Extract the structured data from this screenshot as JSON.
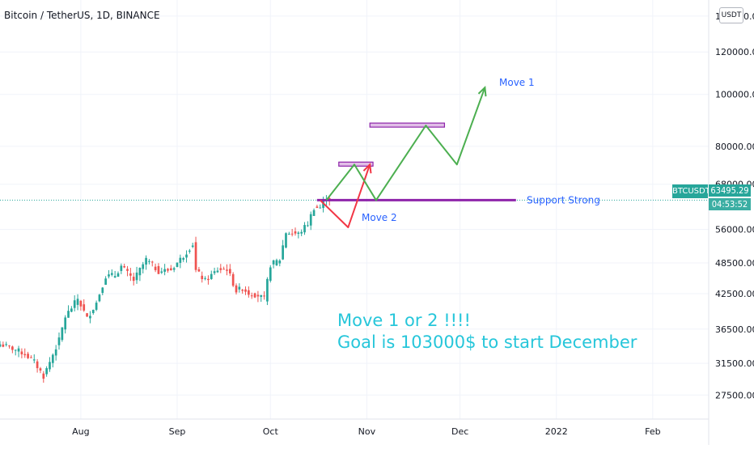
{
  "header": {
    "title": "Bitcoin / TetherUS, 1D, BINANCE",
    "currency": "USDT"
  },
  "price_tags": {
    "symbol": "BTCUSDT",
    "price": "63495.29",
    "countdown": "04:53:52"
  },
  "colors": {
    "up": "#26a69a",
    "down": "#ef5350",
    "support": "#8e24aa",
    "move1": "#4caf50",
    "move2": "#f23645",
    "annotation": "#26c6da",
    "label": "#2962ff"
  },
  "chart_data": {
    "type": "candlestick",
    "title": "Bitcoin / TetherUS, 1D, BINANCE",
    "y_scale": "log",
    "y_ticks": [
      "140000.00",
      "120000.00",
      "100000.00",
      "80000.00",
      "68000.00",
      "56000.00",
      "48500.00",
      "42500.00",
      "36500.00",
      "31500.00",
      "27500.00"
    ],
    "x_ticks": [
      "Aug",
      "Sep",
      "Oct",
      "Nov",
      "Dec",
      "2022",
      "Feb"
    ],
    "x_range": [
      "2021-07-06",
      "2022-02-19"
    ],
    "y_range": [
      24800,
      150000
    ],
    "last_price": 63495.29,
    "close_path": [
      [
        "2021-07-06",
        34200
      ],
      [
        "2021-07-10",
        33600
      ],
      [
        "2021-07-14",
        32800
      ],
      [
        "2021-07-17",
        31700
      ],
      [
        "2021-07-20",
        29800
      ],
      [
        "2021-07-22",
        31700
      ],
      [
        "2021-07-25",
        34800
      ],
      [
        "2021-07-27",
        38500
      ],
      [
        "2021-07-29",
        40000
      ],
      [
        "2021-07-31",
        41600
      ],
      [
        "2021-08-03",
        38200
      ],
      [
        "2021-08-06",
        40900
      ],
      [
        "2021-08-09",
        45800
      ],
      [
        "2021-08-12",
        46000
      ],
      [
        "2021-08-14",
        47800
      ],
      [
        "2021-08-18",
        45000
      ],
      [
        "2021-08-22",
        49200
      ],
      [
        "2021-08-26",
        46800
      ],
      [
        "2021-08-30",
        47100
      ],
      [
        "2021-09-03",
        50000
      ],
      [
        "2021-09-06",
        52600
      ],
      [
        "2021-09-07",
        46900
      ],
      [
        "2021-09-10",
        44900
      ],
      [
        "2021-09-14",
        47100
      ],
      [
        "2021-09-17",
        47300
      ],
      [
        "2021-09-20",
        43000
      ],
      [
        "2021-09-22",
        43500
      ],
      [
        "2021-09-24",
        42600
      ],
      [
        "2021-09-27",
        42200
      ],
      [
        "2021-09-29",
        41500
      ],
      [
        "2021-10-01",
        48100
      ],
      [
        "2021-10-04",
        49200
      ],
      [
        "2021-10-06",
        55300
      ],
      [
        "2021-10-10",
        54900
      ],
      [
        "2021-10-13",
        57400
      ],
      [
        "2021-10-15",
        61500
      ],
      [
        "2021-10-17",
        61500
      ],
      [
        "2021-10-19",
        64300
      ],
      [
        "2021-10-20",
        63495
      ]
    ],
    "drawings": {
      "support": {
        "label": "Support Strong",
        "price": 63495,
        "from": "2021-10-16",
        "to": "2021-12-19"
      },
      "resistance_zones": [
        {
          "price": 74000,
          "from": "2021-10-23",
          "to": "2021-11-03"
        },
        {
          "price": 87500,
          "from": "2021-11-02",
          "to": "2021-11-26"
        }
      ],
      "move1": {
        "label": "Move 1",
        "points": [
          [
            "2021-10-19",
            63495
          ],
          [
            "2021-10-28",
            74000
          ],
          [
            "2021-11-04",
            63495
          ],
          [
            "2021-11-20",
            87500
          ],
          [
            "2021-11-30",
            74000
          ],
          [
            "2021-12-09",
            103000
          ]
        ]
      },
      "move2": {
        "label": "Move 2",
        "points": [
          [
            "2021-10-17",
            63495
          ],
          [
            "2021-10-26",
            56500
          ],
          [
            "2021-11-02",
            74000
          ]
        ]
      },
      "annotation": [
        "Move 1 or 2 !!!!",
        "Goal is 103000$ to start December"
      ]
    }
  }
}
